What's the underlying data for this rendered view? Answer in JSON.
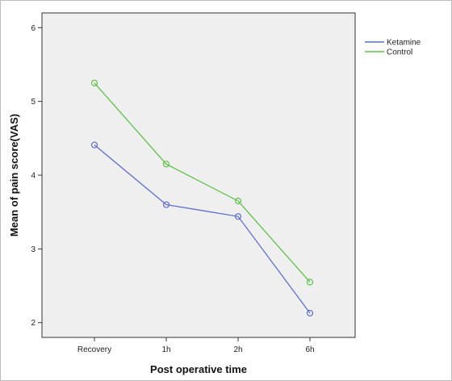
{
  "chart_data": {
    "type": "line",
    "title": "",
    "xlabel": "Post operative time",
    "ylabel": "Mean of pain score(VAS)",
    "categories": [
      "Recovery",
      "1h",
      "2h",
      "6h"
    ],
    "yticks": [
      "2",
      "3",
      "4",
      "5",
      "6"
    ],
    "ylim": [
      1.8,
      6.2
    ],
    "grid": false,
    "legend_position": "right-top",
    "plot_background": "#efefef",
    "series": [
      {
        "name": "Ketamine",
        "color": "#5b6fcf",
        "values": [
          4.41,
          3.6,
          3.44,
          2.13
        ]
      },
      {
        "name": "Control",
        "color": "#5ec247",
        "values": [
          5.25,
          4.15,
          3.65,
          2.55
        ]
      }
    ]
  }
}
